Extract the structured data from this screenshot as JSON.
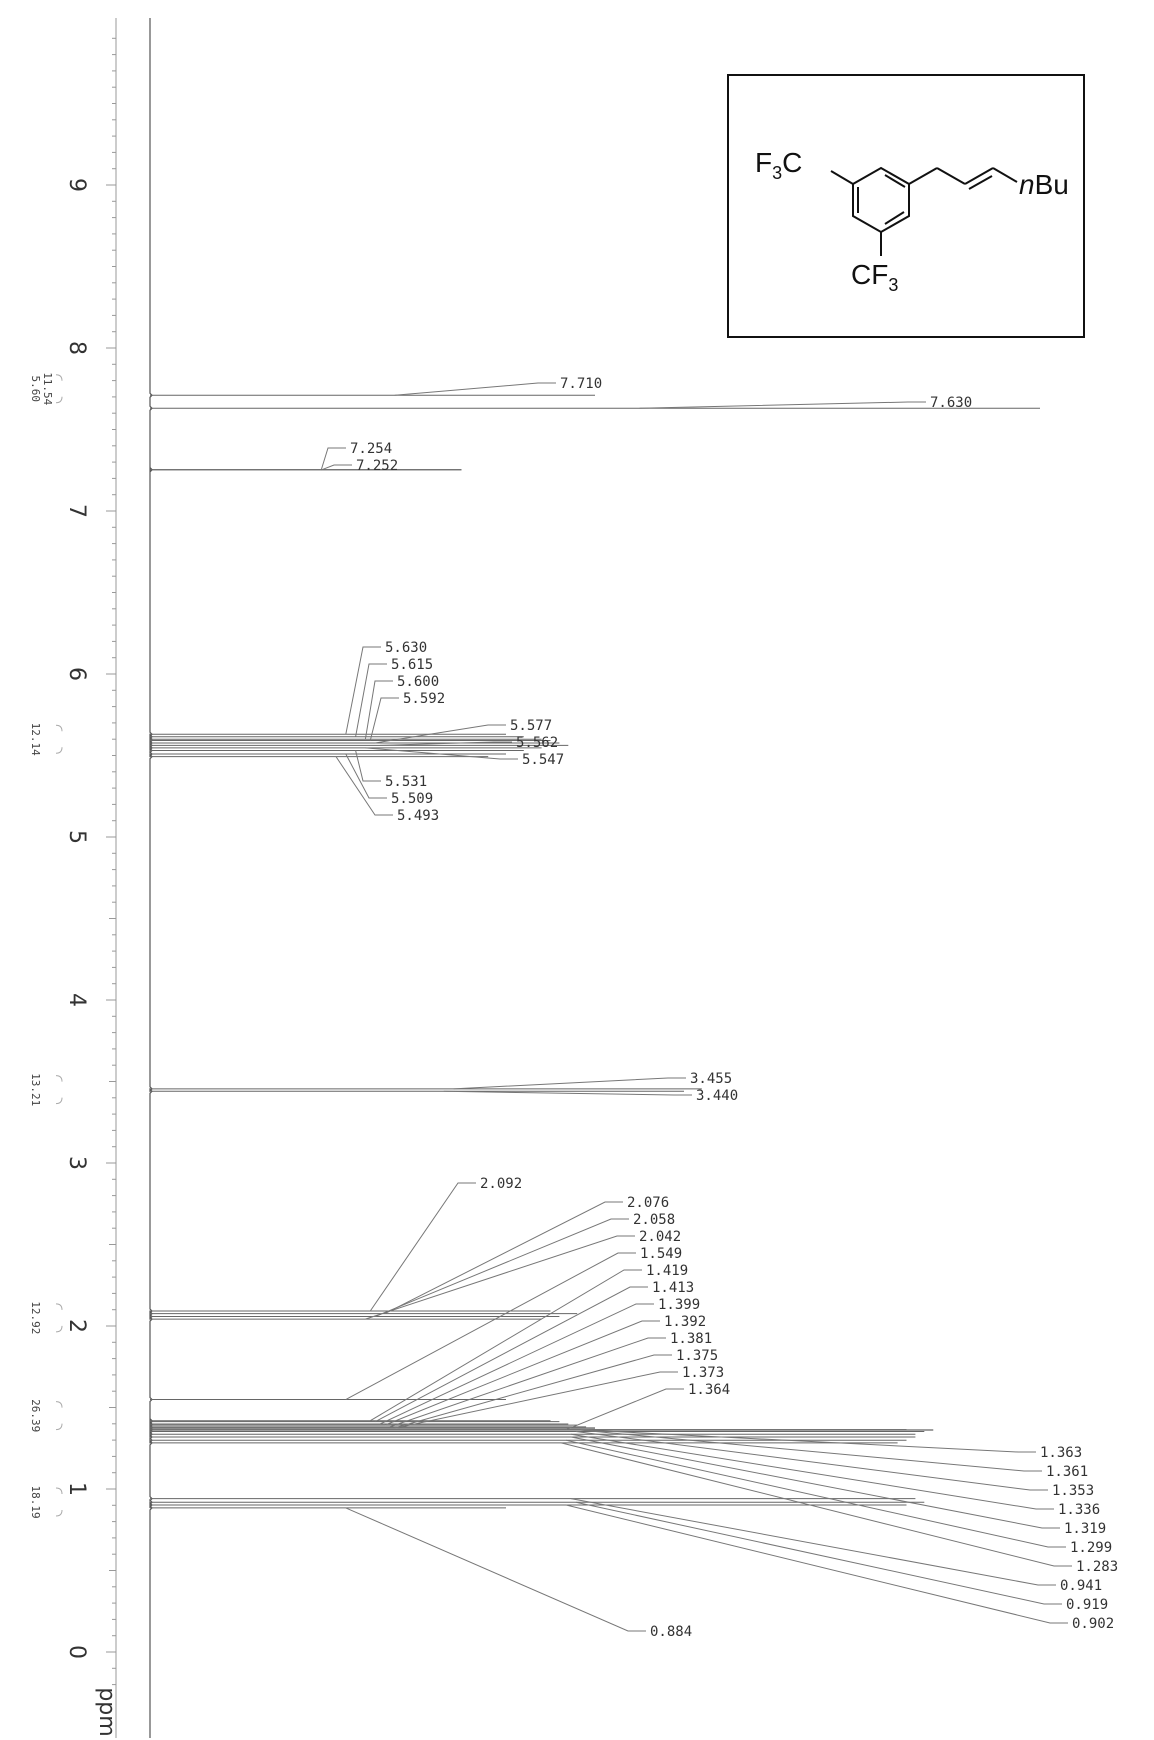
{
  "chart_data": {
    "type": "line",
    "title": "",
    "xlabel": "ppm",
    "ylabel": "",
    "axis_orientation": "vertical, chemical shift increasing upward",
    "xlim": [
      -0.3,
      9.9
    ],
    "ticks": [
      "0",
      "1",
      "2",
      "3",
      "4",
      "5",
      "6",
      "7",
      "8",
      "9"
    ],
    "grid": false,
    "legend": "none",
    "peaks": [
      {
        "ppm": 7.71,
        "label": "7.710",
        "intensity": 0.5
      },
      {
        "ppm": 7.63,
        "label": "7.630",
        "intensity": 1.0
      },
      {
        "ppm": 7.254,
        "label": "7.254",
        "intensity": 0.35
      },
      {
        "ppm": 7.252,
        "label": "7.252",
        "intensity": 0.35
      },
      {
        "ppm": 5.63,
        "label": "5.630",
        "intensity": 0.4
      },
      {
        "ppm": 5.615,
        "label": "5.615",
        "intensity": 0.42
      },
      {
        "ppm": 5.6,
        "label": "5.600",
        "intensity": 0.44
      },
      {
        "ppm": 5.592,
        "label": "5.592",
        "intensity": 0.45
      },
      {
        "ppm": 5.577,
        "label": "5.577",
        "intensity": 0.46
      },
      {
        "ppm": 5.562,
        "label": "5.562",
        "intensity": 0.47
      },
      {
        "ppm": 5.547,
        "label": "5.547",
        "intensity": 0.44
      },
      {
        "ppm": 5.531,
        "label": "5.531",
        "intensity": 0.42
      },
      {
        "ppm": 5.509,
        "label": "5.509",
        "intensity": 0.4
      },
      {
        "ppm": 5.493,
        "label": "5.493",
        "intensity": 0.38
      },
      {
        "ppm": 3.455,
        "label": "3.455",
        "intensity": 0.62
      },
      {
        "ppm": 3.44,
        "label": "3.440",
        "intensity": 0.6
      },
      {
        "ppm": 2.092,
        "label": "2.092",
        "intensity": 0.45
      },
      {
        "ppm": 2.076,
        "label": "2.076",
        "intensity": 0.48
      },
      {
        "ppm": 2.058,
        "label": "2.058",
        "intensity": 0.46
      },
      {
        "ppm": 2.042,
        "label": "2.042",
        "intensity": 0.44
      },
      {
        "ppm": 1.549,
        "label": "1.549",
        "intensity": 0.4
      },
      {
        "ppm": 1.419,
        "label": "1.419",
        "intensity": 0.45
      },
      {
        "ppm": 1.413,
        "label": "1.413",
        "intensity": 0.46
      },
      {
        "ppm": 1.399,
        "label": "1.399",
        "intensity": 0.47
      },
      {
        "ppm": 1.392,
        "label": "1.392",
        "intensity": 0.48
      },
      {
        "ppm": 1.381,
        "label": "1.381",
        "intensity": 0.49
      },
      {
        "ppm": 1.375,
        "label": "1.375",
        "intensity": 0.5
      },
      {
        "ppm": 1.373,
        "label": "1.373",
        "intensity": 0.5
      },
      {
        "ppm": 1.364,
        "label": "1.364",
        "intensity": 0.85
      },
      {
        "ppm": 1.363,
        "label": "1.363",
        "intensity": 0.88
      },
      {
        "ppm": 1.361,
        "label": "1.361",
        "intensity": 0.88
      },
      {
        "ppm": 1.353,
        "label": "1.353",
        "intensity": 0.87
      },
      {
        "ppm": 1.336,
        "label": "1.336",
        "intensity": 0.86
      },
      {
        "ppm": 1.319,
        "label": "1.319",
        "intensity": 0.86
      },
      {
        "ppm": 1.299,
        "label": "1.299",
        "intensity": 0.85
      },
      {
        "ppm": 1.283,
        "label": "1.283",
        "intensity": 0.84
      },
      {
        "ppm": 0.941,
        "label": "0.941",
        "intensity": 0.86
      },
      {
        "ppm": 0.919,
        "label": "0.919",
        "intensity": 0.87
      },
      {
        "ppm": 0.902,
        "label": "0.902",
        "intensity": 0.85
      },
      {
        "ppm": 0.884,
        "label": "0.884",
        "intensity": 0.4
      }
    ],
    "integrals": [
      {
        "ppm": 7.75,
        "values": [
          "5.60",
          "11.54"
        ]
      },
      {
        "ppm": 5.6,
        "values": [
          "12.14"
        ]
      },
      {
        "ppm": 3.45,
        "values": [
          "13.21"
        ]
      },
      {
        "ppm": 2.05,
        "values": [
          "12.92"
        ]
      },
      {
        "ppm": 1.45,
        "values": [
          "26.39"
        ]
      },
      {
        "ppm": 0.92,
        "values": [
          "18.19"
        ]
      }
    ]
  },
  "structure": {
    "left_group": "F3C",
    "bottom_group": "CF3",
    "right_group": "nBu"
  }
}
